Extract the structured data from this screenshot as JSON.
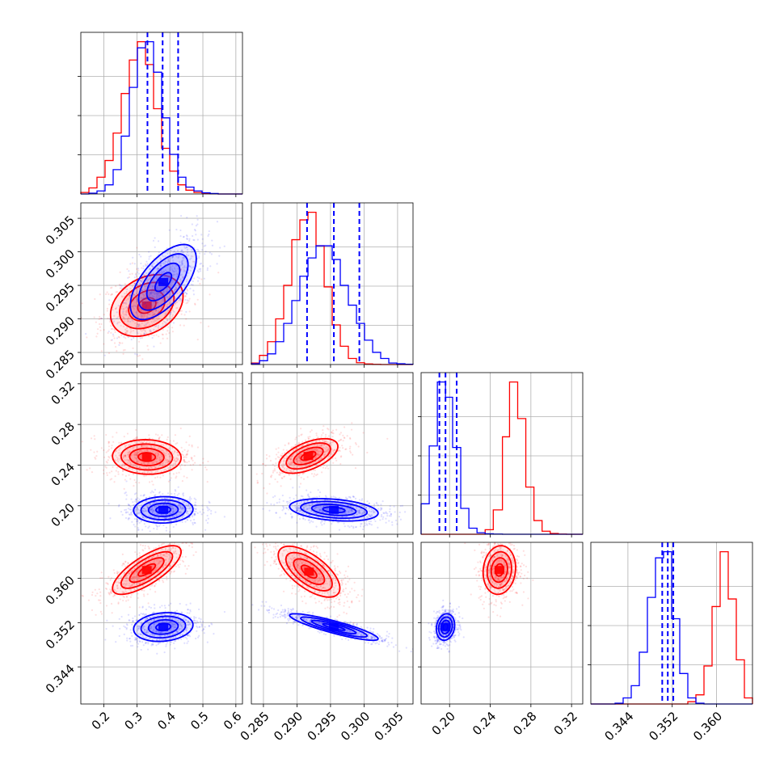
{
  "chart_data": {
    "type": "corner",
    "grid": true,
    "series": [
      {
        "name": "",
        "color": "#ff0000"
      },
      {
        "name": "",
        "color": "#0000ff"
      }
    ],
    "parameters": [
      {
        "range": [
          0.13,
          0.62
        ],
        "ticks": [
          "0.2",
          "0.3",
          "0.4",
          "0.5",
          "0.6"
        ],
        "tick_values": [
          0.2,
          0.3,
          0.4,
          0.5,
          0.6
        ]
      },
      {
        "range": [
          0.2832,
          0.3073
        ],
        "ticks": [
          "0.285",
          "0.290",
          "0.295",
          "0.300",
          "0.305"
        ],
        "tick_values": [
          0.285,
          0.29,
          0.295,
          0.3,
          0.305
        ]
      },
      {
        "range": [
          0.172,
          0.331
        ],
        "ticks": [
          "0.20",
          "0.24",
          "0.28",
          "0.32"
        ],
        "tick_values": [
          0.2,
          0.24,
          0.28,
          0.32
        ]
      },
      {
        "range": [
          0.3373,
          0.3665
        ],
        "ticks": [
          "0.344",
          "0.352",
          "0.360"
        ],
        "tick_values": [
          0.344,
          0.352,
          0.36
        ]
      }
    ],
    "quantiles_blue": [
      [
        0.332,
        0.378,
        0.425
      ],
      [
        0.2915,
        0.2955,
        0.2993
      ],
      [
        0.19,
        0.196,
        0.207
      ],
      [
        0.3502,
        0.3512,
        0.3522
      ]
    ],
    "hist_edges": [
      [
        0.13,
        0.1545,
        0.179,
        0.2035,
        0.228,
        0.2525,
        0.277,
        0.3015,
        0.326,
        0.3505,
        0.375,
        0.3995,
        0.424,
        0.4485,
        0.473,
        0.4975,
        0.522,
        0.5465,
        0.571,
        0.5955,
        0.62
      ],
      [
        0.2832,
        0.28441,
        0.28561,
        0.28682,
        0.28802,
        0.28923,
        0.29043,
        0.29164,
        0.29284,
        0.29405,
        0.29525,
        0.29646,
        0.29766,
        0.29887,
        0.30007,
        0.30128,
        0.30248,
        0.30369,
        0.30489,
        0.3061,
        0.3073
      ],
      [
        0.172,
        0.18,
        0.188,
        0.196,
        0.203,
        0.211,
        0.219,
        0.227,
        0.235,
        0.243,
        0.252,
        0.259,
        0.267,
        0.275,
        0.283,
        0.291,
        0.299,
        0.307,
        0.315,
        0.323,
        0.331
      ],
      [
        0.3373,
        0.33876,
        0.34022,
        0.34168,
        0.34314,
        0.3446,
        0.34606,
        0.34752,
        0.34898,
        0.35044,
        0.3519,
        0.35336,
        0.35482,
        0.35628,
        0.35774,
        0.3592,
        0.36066,
        0.36212,
        0.36358,
        0.36504,
        0.3665
      ]
    ],
    "hist_red": [
      [
        10,
        40,
        110,
        220,
        400,
        660,
        880,
        1000,
        850,
        560,
        300,
        150,
        60,
        25,
        10,
        5,
        2,
        0,
        0,
        0
      ],
      [
        10,
        60,
        150,
        300,
        520,
        820,
        950,
        1000,
        780,
        510,
        260,
        120,
        40,
        12,
        4,
        1,
        0,
        0,
        0,
        0
      ],
      [
        0,
        0,
        0,
        0,
        0,
        0,
        0,
        0,
        30,
        160,
        640,
        1000,
        760,
        310,
        90,
        20,
        5,
        1,
        0,
        0
      ],
      [
        0,
        0,
        0,
        0,
        0,
        0,
        0,
        0,
        0,
        0,
        0,
        0,
        15,
        60,
        250,
        640,
        1000,
        690,
        290,
        40
      ]
    ],
    "hist_blue": [
      [
        0,
        5,
        20,
        60,
        160,
        380,
        700,
        960,
        1000,
        800,
        500,
        260,
        110,
        45,
        20,
        8,
        3,
        0,
        0,
        0
      ],
      [
        5,
        25,
        70,
        150,
        270,
        420,
        580,
        700,
        780,
        780,
        690,
        520,
        390,
        270,
        160,
        80,
        40,
        10,
        5,
        2
      ],
      [
        200,
        580,
        1000,
        900,
        570,
        170,
        40,
        10,
        3,
        1,
        0,
        0,
        0,
        0,
        0,
        0,
        0,
        0,
        0,
        0
      ],
      [
        0,
        0,
        0,
        5,
        40,
        120,
        340,
        700,
        960,
        1000,
        560,
        200,
        40,
        5,
        0,
        0,
        0,
        0,
        0,
        0
      ]
    ],
    "density_red": [
      {
        "pair": [
          0,
          1
        ],
        "mean": [
          0.33,
          0.292
        ],
        "std": [
          0.055,
          0.0023
        ],
        "corr": 0.3
      },
      {
        "pair": [
          0,
          2
        ],
        "mean": [
          0.33,
          0.248
        ],
        "std": [
          0.052,
          0.0085
        ],
        "corr": -0.05
      },
      {
        "pair": [
          1,
          2
        ],
        "mean": [
          0.2917,
          0.249
        ],
        "std": [
          0.0022,
          0.0085
        ],
        "corr": 0.55
      },
      {
        "pair": [
          0,
          3
        ],
        "mean": [
          0.33,
          0.3615
        ],
        "std": [
          0.052,
          0.0022
        ],
        "corr": 0.75
      },
      {
        "pair": [
          1,
          3
        ],
        "mean": [
          0.2918,
          0.3612
        ],
        "std": [
          0.0023,
          0.0023
        ],
        "corr": -0.65
      },
      {
        "pair": [
          2,
          3
        ],
        "mean": [
          0.249,
          0.3615
        ],
        "std": [
          0.008,
          0.0022
        ],
        "corr": 0.1
      }
    ],
    "density_blue": [
      {
        "pair": [
          0,
          1
        ],
        "mean": [
          0.38,
          0.2955
        ],
        "std": [
          0.05,
          0.0028
        ],
        "corr": 0.62
      },
      {
        "pair": [
          0,
          2
        ],
        "mean": [
          0.38,
          0.196
        ],
        "std": [
          0.045,
          0.0065
        ],
        "corr": 0.05
      },
      {
        "pair": [
          1,
          2
        ],
        "mean": [
          0.2955,
          0.196
        ],
        "std": [
          0.0033,
          0.0055
        ],
        "corr": -0.3
      },
      {
        "pair": [
          0,
          3
        ],
        "mean": [
          0.38,
          0.3512
        ],
        "std": [
          0.045,
          0.0013
        ],
        "corr": 0.15
      },
      {
        "pair": [
          1,
          3
        ],
        "mean": [
          0.2955,
          0.3512
        ],
        "std": [
          0.0033,
          0.0012
        ],
        "corr": -0.88
      },
      {
        "pair": [
          2,
          3
        ],
        "mean": [
          0.196,
          0.3512
        ],
        "std": [
          0.0045,
          0.0012
        ],
        "corr": 0.15
      }
    ],
    "contour_levels_sigma": [
      0.5,
      1.0,
      1.5,
      2.0
    ]
  }
}
